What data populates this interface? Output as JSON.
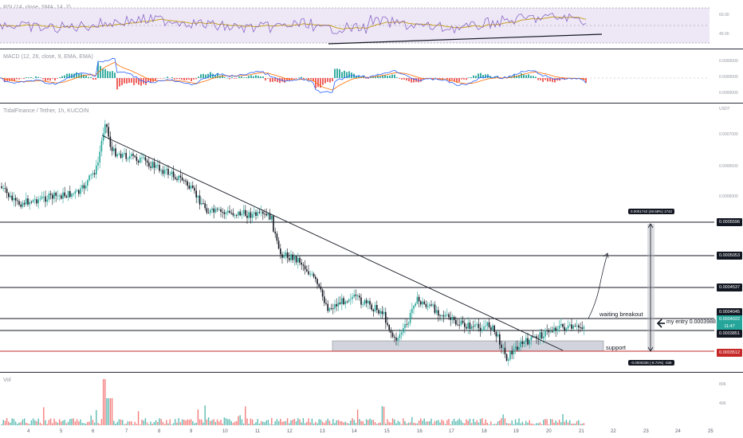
{
  "rsi": {
    "label": "RSI (14, close, SMA, 14, 2)",
    "ticks": [
      "60.00",
      "40.00"
    ],
    "colors": {
      "line": "#7e57c2",
      "ma": "#c9a227",
      "band": "#ede7f6"
    }
  },
  "macd": {
    "label": "MACD (12, 26, close, 9, EMA, EMA)",
    "ticks": [
      "0.0000000",
      "0.0000000",
      "0.0000000"
    ],
    "colors": {
      "macd": "#2962ff",
      "signal": "#ff6d00",
      "hist_up": "#26a69a",
      "hist_down": "#ef5350"
    }
  },
  "main": {
    "symbol": "TidalFinance / Tether, 1h, KUCOIN",
    "currency": "USDT",
    "right_ticks": [
      "0.0007000",
      "0.0006500",
      "0.0006000"
    ],
    "levels": [
      {
        "label": "0.0005596",
        "kind": "resistance"
      },
      {
        "label": "0.0005053",
        "kind": "resistance"
      },
      {
        "label": "0.0004537",
        "kind": "resistance"
      },
      {
        "label": "0.0004045",
        "kind": "resistance"
      },
      {
        "label": "0.0004022",
        "kind": "current"
      },
      {
        "label": "11:47",
        "kind": "countdown"
      },
      {
        "label": "0.0003851",
        "kind": "resistance"
      },
      {
        "label": "0.0003512",
        "kind": "support"
      }
    ],
    "annotations": {
      "waiting": "waiting breakout",
      "entry": "my entry 0.0003988",
      "support": "support",
      "measure_up": "0.0001742 (49.58%) 1742",
      "measure_down": "-0.0000336 (-8.72%) -336"
    },
    "colors": {
      "up": "#26a69a",
      "down": "#ef5350",
      "candle": "#131722",
      "support": "#c62828",
      "zone": "#d1d4dc"
    }
  },
  "volume": {
    "label": "Vol",
    "ticks": [
      "80K",
      "40K"
    ]
  },
  "time_axis": [
    "4",
    "5",
    "6",
    "7",
    "8",
    "9",
    "10",
    "11",
    "12",
    "13",
    "14",
    "15",
    "16",
    "17",
    "18",
    "19",
    "20",
    "21",
    "22",
    "23",
    "24",
    "25"
  ],
  "chart_data": {
    "type": "candlestick",
    "title": "TidalFinance / Tether, 1h, KUCOIN",
    "x": [
      "4",
      "5",
      "6",
      "7",
      "8",
      "9",
      "10",
      "11",
      "12",
      "13",
      "14",
      "15",
      "16",
      "17",
      "18",
      "19",
      "20",
      "21"
    ],
    "close": [
      0.0006,
      0.0006,
      0.00067,
      0.00063,
      0.00062,
      0.0006,
      0.00059,
      0.00056,
      0.0005,
      0.00042,
      0.00043,
      0.00041,
      0.00043,
      0.0004,
      0.00038,
      0.00036,
      0.00039,
      0.000402
    ],
    "horizontal_levels": [
      0.0005596,
      0.0005053,
      0.0004537,
      0.0004045,
      0.0003851,
      0.0003512
    ],
    "ylabel": "USDT"
  }
}
